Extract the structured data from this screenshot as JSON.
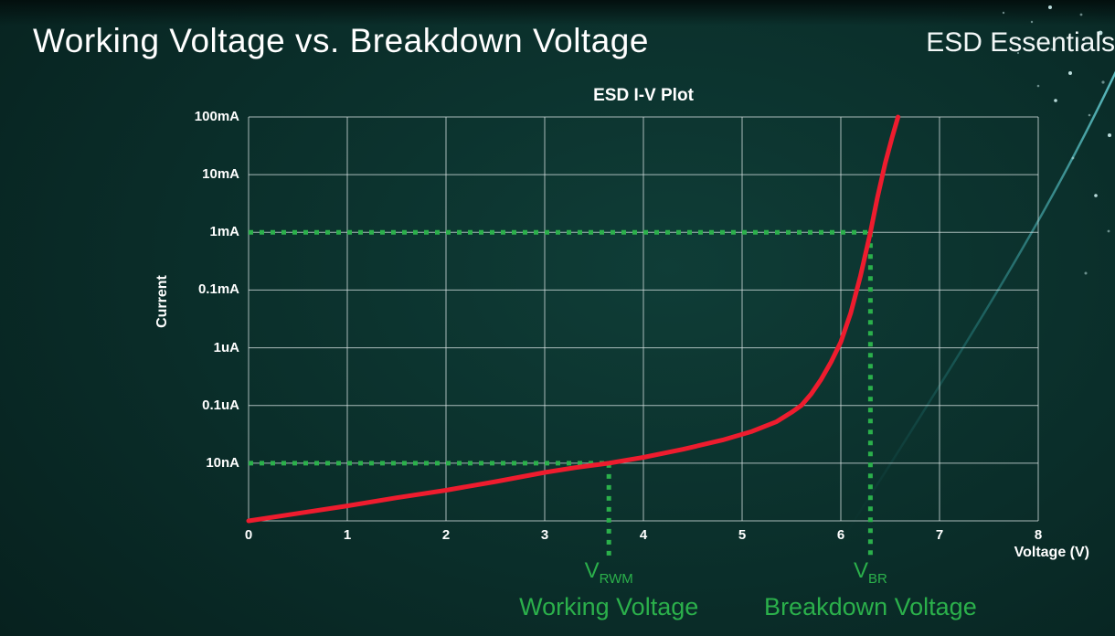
{
  "header": {
    "title": "Working Voltage vs. Breakdown Voltage",
    "brand": "ESD Essentials"
  },
  "chart_data": {
    "type": "line",
    "title": "ESD I-V Plot",
    "xlabel": "Voltage (V)",
    "ylabel": "Current",
    "x_range": [
      0,
      8
    ],
    "xtick_labels": [
      "0",
      "1",
      "2",
      "3",
      "4",
      "5",
      "6",
      "7",
      "8"
    ],
    "ytick_labels": [
      "100mA",
      "10mA",
      "1mA",
      "0.1mA",
      "1uA",
      "0.1uA",
      "10nA"
    ],
    "y_scale_note": "logarithmic-style axis; curve y values given as grid rows above the bottom axis (0 = bottom axis, 7 = 100mA top line)",
    "grid": true,
    "series": [
      {
        "name": "ESD diode I-V curve",
        "color": "#ee1c2e",
        "points": [
          [
            0,
            0
          ],
          [
            0.5,
            0.13
          ],
          [
            1,
            0.26
          ],
          [
            1.5,
            0.4
          ],
          [
            2,
            0.53
          ],
          [
            2.5,
            0.68
          ],
          [
            3,
            0.84
          ],
          [
            3.3,
            0.92
          ],
          [
            3.65,
            1.0
          ],
          [
            4,
            1.1
          ],
          [
            4.4,
            1.24
          ],
          [
            4.8,
            1.4
          ],
          [
            5.1,
            1.55
          ],
          [
            5.35,
            1.72
          ],
          [
            5.5,
            1.88
          ],
          [
            5.6,
            2.0
          ],
          [
            5.7,
            2.2
          ],
          [
            5.8,
            2.45
          ],
          [
            5.9,
            2.75
          ],
          [
            6.0,
            3.1
          ],
          [
            6.1,
            3.6
          ],
          [
            6.2,
            4.25
          ],
          [
            6.3,
            5.0
          ],
          [
            6.37,
            5.6
          ],
          [
            6.45,
            6.2
          ],
          [
            6.52,
            6.65
          ],
          [
            6.58,
            7.0
          ]
        ]
      }
    ],
    "annotations": [
      {
        "id": "working",
        "symbol": "V",
        "subscript": "RWM",
        "label": "Working Voltage",
        "voltage": 3.65,
        "row": 1,
        "current_level": "10nA",
        "color": "#2bb04b"
      },
      {
        "id": "breakdown",
        "symbol": "V",
        "subscript": "BR",
        "label": "Breakdown Voltage",
        "voltage": 6.3,
        "row": 5,
        "current_level": "1mA",
        "color": "#2bb04b"
      }
    ]
  },
  "colors": {
    "background": "#0a2d29",
    "grid": "#d2dddd",
    "curve": "#ee1c2e",
    "annotation_green": "#2bb04b",
    "text": "#ffffff"
  }
}
